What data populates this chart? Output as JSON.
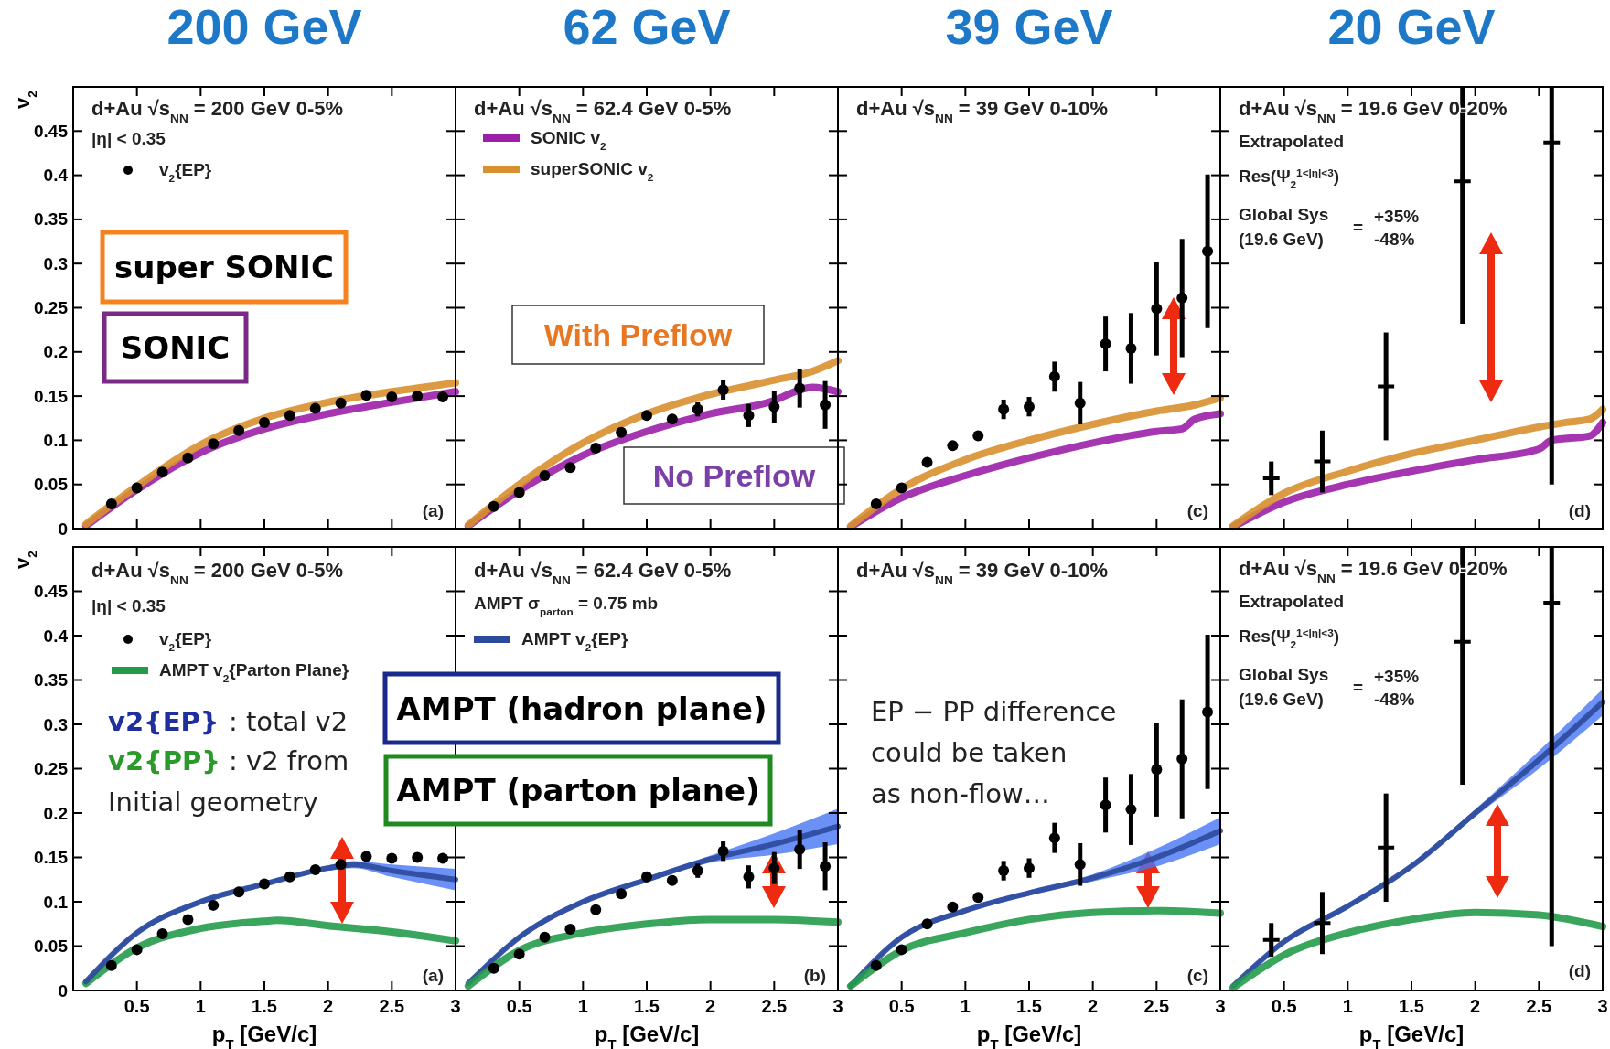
{
  "chart_data": [
    {
      "type": "line",
      "title": "200 GeV",
      "ylabel": "v$_{2}$",
      "xlim": [
        0,
        3
      ],
      "ylim": [
        0,
        0.5
      ],
      "xticks": [
        0.5,
        1,
        1.5,
        2,
        2.5,
        3
      ],
      "yticks": [
        0,
        0.05,
        0.1,
        0.15,
        0.2,
        0.25,
        0.3,
        0.35,
        0.4,
        0.45
      ],
      "tick_labels": "y",
      "legend": "top left",
      "annotations": [
        "d+Au √s$_{NN}$ = 200 GeV 0-5%",
        "|η| < 0.35",
        "super SONIC",
        "SONIC",
        "(a)"
      ],
      "series": [
        {
          "type": "scatter",
          "name": "v$_{2}${EP}",
          "color": "#000000",
          "marker": "circle",
          "x": [
            0.3,
            0.5,
            0.7,
            0.9,
            1.1,
            1.3,
            1.5,
            1.7,
            1.9,
            2.1,
            2.3,
            2.5,
            2.7,
            2.9
          ],
          "values": [
            0.028,
            0.046,
            0.064,
            0.08,
            0.096,
            0.111,
            0.12,
            0.128,
            0.136,
            0.142,
            0.151,
            0.149,
            0.15,
            0.149
          ]
        },
        {
          "color": "#9b1fa8",
          "x": [
            0.1,
            0.5,
            1,
            1.5,
            2,
            2.5,
            3
          ],
          "values": [
            0.003,
            0.044,
            0.086,
            0.113,
            0.13,
            0.143,
            0.155
          ]
        },
        {
          "color": "#d8902e",
          "x": [
            0.1,
            0.5,
            1,
            1.5,
            2,
            2.5,
            3
          ],
          "values": [
            0.005,
            0.048,
            0.095,
            0.125,
            0.143,
            0.155,
            0.165
          ]
        }
      ]
    },
    {
      "type": "line",
      "title": "62 GeV",
      "xlim": [
        0,
        3
      ],
      "ylim": [
        0,
        0.5
      ],
      "xticks": [
        0.5,
        1,
        1.5,
        2,
        2.5,
        3
      ],
      "yticks": [
        0,
        0.05,
        0.1,
        0.15,
        0.2,
        0.25,
        0.3,
        0.35,
        0.4,
        0.45
      ],
      "tick_labels": false,
      "legend": "top left",
      "annotations": [
        "d+Au √s$_{NN}$ = 62.4 GeV 0-5%",
        "With Preflow",
        "No Preflow"
      ],
      "series": [
        {
          "type": "scatter",
          "color": "#000000",
          "marker": "circle",
          "x": [
            0.3,
            0.5,
            0.7,
            0.9,
            1.1,
            1.3,
            1.5,
            1.7,
            1.9,
            2.1,
            2.3,
            2.5,
            2.7,
            2.9
          ],
          "values": [
            0.025,
            0.041,
            0.06,
            0.069,
            0.091,
            0.109,
            0.128,
            0.124,
            0.135,
            0.157,
            0.128,
            0.138,
            0.159,
            0.14
          ],
          "errors": [
            null,
            null,
            null,
            null,
            null,
            null,
            null,
            null,
            0.008,
            0.011,
            0.013,
            0.018,
            0.022,
            0.027
          ]
        },
        {
          "name": "SONIC v$_{2}$",
          "color": "#9b1fa8",
          "x": [
            0.1,
            0.5,
            1,
            1.5,
            2,
            2.5,
            2.7,
            2.8,
            3
          ],
          "values": [
            0.003,
            0.043,
            0.083,
            0.11,
            0.13,
            0.145,
            0.157,
            0.16,
            0.155
          ]
        },
        {
          "name": "superSONIC v$_{2}$",
          "color": "#d8902e",
          "x": [
            0.1,
            0.5,
            1,
            1.5,
            2,
            2.5,
            2.8,
            3
          ],
          "values": [
            0.004,
            0.05,
            0.097,
            0.13,
            0.152,
            0.168,
            0.178,
            0.19
          ]
        }
      ]
    },
    {
      "type": "line",
      "title": "39 GeV",
      "xlim": [
        0,
        3
      ],
      "ylim": [
        0,
        0.5
      ],
      "xticks": [
        0.5,
        1,
        1.5,
        2,
        2.5,
        3
      ],
      "yticks": [
        0,
        0.05,
        0.1,
        0.15,
        0.2,
        0.25,
        0.3,
        0.35,
        0.4,
        0.45
      ],
      "tick_labels": false,
      "annotations": [
        "d+Au √s$_{NN}$ = 39 GeV 0-10%",
        "(c)"
      ],
      "series": [
        {
          "type": "scatter",
          "color": "#000000",
          "marker": "circle",
          "x": [
            0.3,
            0.5,
            0.7,
            0.9,
            1.1,
            1.3,
            1.5,
            1.7,
            1.9,
            2.1,
            2.3,
            2.5,
            2.7,
            2.9
          ],
          "values": [
            0.028,
            0.046,
            0.075,
            0.094,
            0.105,
            0.135,
            0.138,
            0.172,
            0.142,
            0.209,
            0.204,
            0.249,
            0.261,
            0.314
          ],
          "errors": [
            null,
            null,
            null,
            null,
            null,
            0.011,
            0.011,
            0.017,
            0.024,
            0.031,
            0.04,
            0.053,
            0.067,
            0.087
          ]
        },
        {
          "color": "#9b1fa8",
          "x": [
            0.1,
            0.5,
            1,
            1.5,
            2,
            2.5,
            2.7,
            2.8,
            3
          ],
          "values": [
            0.002,
            0.035,
            0.06,
            0.08,
            0.097,
            0.11,
            0.113,
            0.124,
            0.13
          ]
        },
        {
          "color": "#d8902e",
          "x": [
            0.1,
            0.5,
            1,
            1.5,
            2,
            2.5,
            2.8,
            3
          ],
          "values": [
            0.003,
            0.045,
            0.078,
            0.1,
            0.118,
            0.133,
            0.14,
            0.148
          ]
        }
      ]
    },
    {
      "type": "line",
      "title": "20 GeV",
      "xlim": [
        0,
        3
      ],
      "ylim": [
        0,
        0.5
      ],
      "xticks": [
        0.5,
        1,
        1.5,
        2,
        2.5,
        3
      ],
      "yticks": [
        0,
        0.05,
        0.1,
        0.15,
        0.2,
        0.25,
        0.3,
        0.35,
        0.4,
        0.45
      ],
      "tick_labels": false,
      "annotations": [
        "d+Au √s$_{NN}$ = 19.6 GeV 0-20%",
        "Extrapolated",
        "Res(Ψ$_{2}$$^{1<|η|<3}$)",
        "Global Sys",
        "(19.6 GeV)",
        "=",
        "+35%",
        "-48%",
        "(d)"
      ],
      "series": [
        {
          "type": "scatter",
          "color": "#000000",
          "marker": "cross",
          "x": [
            0.4,
            0.8,
            1.3,
            1.9,
            2.6
          ],
          "values": [
            0.057,
            0.076,
            0.161,
            0.393,
            0.437
          ],
          "errors": [
            0.019,
            0.035,
            0.061,
            [
              0.232,
              0.5
            ],
            [
              0.05,
              0.5
            ]
          ]
        },
        {
          "color": "#9b1fa8",
          "x": [
            0.1,
            0.5,
            1,
            1.5,
            2,
            2.5,
            2.6,
            2.9,
            3
          ],
          "values": [
            0.002,
            0.03,
            0.05,
            0.065,
            0.078,
            0.09,
            0.1,
            0.105,
            0.12
          ]
        },
        {
          "color": "#d8902e",
          "x": [
            0.1,
            0.5,
            1,
            1.5,
            2,
            2.5,
            2.7,
            2.9,
            3
          ],
          "values": [
            0.003,
            0.04,
            0.065,
            0.085,
            0.1,
            0.115,
            0.12,
            0.124,
            0.135
          ]
        }
      ]
    },
    {
      "type": "line",
      "ylabel": "v$_{2}$",
      "xlabel": "p$_{T}$ [GeV/c]",
      "xlim": [
        0,
        3
      ],
      "ylim": [
        0,
        0.5
      ],
      "xticks": [
        0.5,
        1,
        1.5,
        2,
        2.5,
        3
      ],
      "yticks": [
        0,
        0.05,
        0.1,
        0.15,
        0.2,
        0.25,
        0.3,
        0.35,
        0.4,
        0.45
      ],
      "legend": "top left",
      "annotations": [
        "d+Au √s$_{NN}$ = 200 GeV 0-5%",
        "|η| < 0.35",
        "v2{EP}",
        ": total v2",
        "v2{PP}",
        ": v2 from",
        "Initial geometry",
        "(a)"
      ],
      "series": [
        {
          "type": "scatter",
          "name": "v$_{2}${EP}",
          "color": "#000000",
          "marker": "circle",
          "x": [
            0.3,
            0.5,
            0.7,
            0.9,
            1.1,
            1.3,
            1.5,
            1.7,
            1.9,
            2.1,
            2.3,
            2.5,
            2.7,
            2.9
          ],
          "values": [
            0.028,
            0.046,
            0.064,
            0.08,
            0.096,
            0.111,
            0.12,
            0.128,
            0.136,
            0.142,
            0.151,
            0.149,
            0.15,
            0.149
          ]
        },
        {
          "name": "AMPT v$_{2}${Parton Plane}",
          "color": "#239b4b",
          "x": [
            0.1,
            0.5,
            1,
            1.5,
            1.6,
            2,
            2.5,
            3
          ],
          "values": [
            0.008,
            0.048,
            0.07,
            0.078,
            0.079,
            0.073,
            0.066,
            0.056
          ]
        },
        {
          "color": "#2c4a9a",
          "x": [
            0.1,
            0.5,
            1,
            1.5,
            2,
            2.2,
            2.5,
            3
          ],
          "values": [
            0.01,
            0.065,
            0.1,
            0.12,
            0.138,
            0.142,
            0.135,
            0.125
          ],
          "lower": [
            0.008,
            0.062,
            0.097,
            0.117,
            0.135,
            0.138,
            0.128,
            0.113
          ],
          "upper": [
            0.012,
            0.068,
            0.103,
            0.123,
            0.141,
            0.146,
            0.142,
            0.137
          ]
        }
      ]
    },
    {
      "type": "line",
      "xlabel": "p$_{T}$ [GeV/c]",
      "xlim": [
        0,
        3
      ],
      "ylim": [
        0,
        0.5
      ],
      "xticks": [
        0.5,
        1,
        1.5,
        2,
        2.5,
        3
      ],
      "yticks": [
        0,
        0.05,
        0.1,
        0.15,
        0.2,
        0.25,
        0.3,
        0.35,
        0.4,
        0.45
      ],
      "tick_labels": "x",
      "legend": "top left",
      "annotations": [
        "d+Au √s$_{NN}$ = 62.4 GeV 0-5%",
        "AMPT σ$_{parton}$ = 0.75 mb",
        "AMPT (hadron plane)",
        "AMPT (parton plane)",
        "(b)"
      ],
      "series": [
        {
          "type": "scatter",
          "color": "#000000",
          "marker": "circle",
          "x": [
            0.3,
            0.5,
            0.7,
            0.9,
            1.1,
            1.3,
            1.5,
            1.7,
            1.9,
            2.1,
            2.3,
            2.5,
            2.7,
            2.9
          ],
          "values": [
            0.025,
            0.041,
            0.06,
            0.069,
            0.091,
            0.109,
            0.128,
            0.124,
            0.135,
            0.157,
            0.128,
            0.138,
            0.159,
            0.14
          ],
          "errors": [
            null,
            null,
            null,
            null,
            null,
            null,
            null,
            null,
            0.008,
            0.011,
            0.013,
            0.018,
            0.022,
            0.027
          ]
        },
        {
          "name": "AMPT v$_{2}${EP}",
          "color": "#2c4a9a",
          "x": [
            0.1,
            0.5,
            1,
            1.5,
            2,
            2.5,
            3
          ],
          "values": [
            0.008,
            0.06,
            0.1,
            0.125,
            0.148,
            0.165,
            0.185
          ],
          "lower": [
            0.006,
            0.057,
            0.097,
            0.122,
            0.144,
            0.153,
            0.165
          ],
          "upper": [
            0.01,
            0.063,
            0.103,
            0.128,
            0.152,
            0.177,
            0.205
          ]
        },
        {
          "color": "#239b4b",
          "x": [
            0.1,
            0.5,
            1,
            1.5,
            2,
            2.5,
            3
          ],
          "values": [
            0.005,
            0.045,
            0.065,
            0.075,
            0.08,
            0.08,
            0.077
          ]
        }
      ]
    },
    {
      "type": "line",
      "xlabel": "p$_{T}$ [GeV/c]",
      "xlim": [
        0,
        3
      ],
      "ylim": [
        0,
        0.5
      ],
      "xticks": [
        0.5,
        1,
        1.5,
        2,
        2.5,
        3
      ],
      "yticks": [
        0,
        0.05,
        0.1,
        0.15,
        0.2,
        0.25,
        0.3,
        0.35,
        0.4,
        0.45
      ],
      "tick_labels": "x",
      "annotations": [
        "d+Au √s$_{NN}$ = 39 GeV 0-10%",
        "EP − PP difference",
        "could be taken",
        "as non-flow…",
        "(c)"
      ],
      "series": [
        {
          "type": "scatter",
          "color": "#000000",
          "marker": "circle",
          "x": [
            0.3,
            0.5,
            0.7,
            0.9,
            1.1,
            1.3,
            1.5,
            1.7,
            1.9,
            2.1,
            2.3,
            2.5,
            2.7,
            2.9
          ],
          "values": [
            0.028,
            0.046,
            0.075,
            0.094,
            0.105,
            0.135,
            0.138,
            0.172,
            0.142,
            0.209,
            0.204,
            0.249,
            0.261,
            0.314
          ],
          "errors": [
            null,
            null,
            null,
            null,
            null,
            0.011,
            0.011,
            0.017,
            0.024,
            0.031,
            0.04,
            0.053,
            0.067,
            0.087
          ]
        },
        {
          "color": "#2c4a9a",
          "x": [
            0.1,
            0.5,
            1,
            1.5,
            2,
            2.5,
            3
          ],
          "values": [
            0.005,
            0.06,
            0.09,
            0.11,
            0.127,
            0.15,
            0.18
          ],
          "lower": [
            0.003,
            0.057,
            0.087,
            0.107,
            0.123,
            0.14,
            0.165
          ],
          "upper": [
            0.007,
            0.063,
            0.093,
            0.113,
            0.131,
            0.16,
            0.195
          ]
        },
        {
          "color": "#239b4b",
          "x": [
            0.1,
            0.5,
            1,
            1.5,
            2,
            2.5,
            3
          ],
          "values": [
            0.005,
            0.045,
            0.065,
            0.08,
            0.088,
            0.09,
            0.087
          ]
        }
      ]
    },
    {
      "type": "line",
      "xlabel": "p$_{T}$ [GeV/c]",
      "xlim": [
        0,
        3
      ],
      "ylim": [
        0,
        0.5
      ],
      "xticks": [
        0.5,
        1,
        1.5,
        2,
        2.5,
        3
      ],
      "yticks": [
        0,
        0.05,
        0.1,
        0.15,
        0.2,
        0.25,
        0.3,
        0.35,
        0.4,
        0.45
      ],
      "tick_labels": "x",
      "annotations": [
        "d+Au √s$_{NN}$ = 19.6 GeV 0-20%",
        "Extrapolated",
        "Res(Ψ$_{2}$$^{1<|η|<3}$)",
        "Global Sys",
        "(19.6 GeV)",
        "=",
        "+35%",
        "-48%",
        "(d)"
      ],
      "series": [
        {
          "type": "scatter",
          "color": "#000000",
          "marker": "cross",
          "x": [
            0.4,
            0.8,
            1.3,
            1.9,
            2.6
          ],
          "values": [
            0.057,
            0.076,
            0.161,
            0.393,
            0.437
          ],
          "errors": [
            0.019,
            0.035,
            0.061,
            [
              0.232,
              0.5
            ],
            [
              0.05,
              0.5
            ]
          ]
        },
        {
          "color": "#2c4a9a",
          "x": [
            0.1,
            0.5,
            1,
            1.5,
            2,
            2.5,
            3
          ],
          "values": [
            0.005,
            0.055,
            0.095,
            0.14,
            0.2,
            0.26,
            0.325
          ],
          "lower": [
            0.003,
            0.052,
            0.092,
            0.137,
            0.196,
            0.25,
            0.31
          ],
          "upper": [
            0.007,
            0.058,
            0.098,
            0.143,
            0.204,
            0.27,
            0.34
          ]
        },
        {
          "color": "#239b4b",
          "x": [
            0.1,
            0.5,
            1,
            1.5,
            2,
            2.5,
            3
          ],
          "values": [
            0.003,
            0.04,
            0.065,
            0.08,
            0.088,
            0.085,
            0.072
          ]
        }
      ]
    }
  ]
}
